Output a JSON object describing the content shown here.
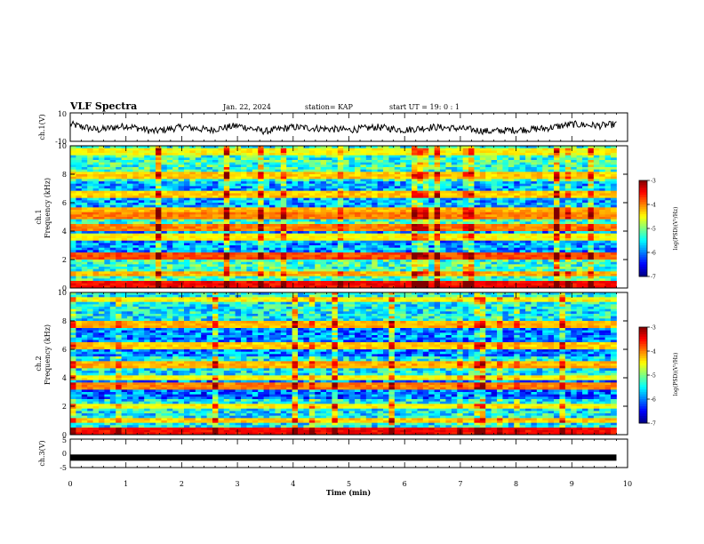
{
  "header": {
    "title": "VLF Spectra",
    "date": "Jan. 22, 2024",
    "station": "station= KAP",
    "start": "start  UT =   19: 0  : 1"
  },
  "panels": {
    "ch1_wave": {
      "ylabel": "ch.1(V)",
      "ytick_labels": [
        "10",
        "-10"
      ]
    },
    "ch1_spec": {
      "ylabel_line1": "ch.1",
      "ylabel_line2": "Frequency (kHz)",
      "ytick_labels": [
        "10",
        "8",
        "6",
        "4",
        "2",
        "0"
      ],
      "colorbar_label": "log(PSD)(V²/Hz)",
      "colorbar_ticks": [
        "-3",
        "-4",
        "-5",
        "-6",
        "-7"
      ]
    },
    "ch2_spec": {
      "ylabel_line1": "ch.2",
      "ylabel_line2": "Frequency (kHz)",
      "ytick_labels": [
        "10",
        "8",
        "6",
        "4",
        "2",
        "0"
      ],
      "colorbar_label": "log(PSD)(V²/Hz)",
      "colorbar_ticks": [
        "-3",
        "-4",
        "-5",
        "-6",
        "-7"
      ]
    },
    "ch3_wave": {
      "ylabel": "ch.3(V)",
      "ytick_labels": [
        "5",
        "0",
        "-5"
      ]
    },
    "xaxis": {
      "xlabel": "Time  (min)",
      "xtick_labels": [
        "0",
        "1",
        "2",
        "3",
        "4",
        "5",
        "6",
        "7",
        "8",
        "9",
        "10"
      ]
    }
  },
  "chart_data": [
    {
      "type": "line",
      "name": "ch.1 waveform",
      "xlabel": "Time (min)",
      "ylabel": "ch.1(V)",
      "xlim": [
        0,
        10
      ],
      "ylim": [
        -10,
        10
      ],
      "x": [
        0,
        0.5,
        1,
        1.5,
        2,
        2.5,
        3,
        3.5,
        4,
        4.5,
        5,
        5.5,
        6,
        6.5,
        7,
        7.5,
        8,
        8.5,
        9,
        9.5,
        9.8
      ],
      "values": [
        2,
        -2,
        1,
        -3,
        0,
        -2,
        1,
        -3,
        0,
        -1,
        -2,
        0,
        -2,
        0,
        -1,
        -3,
        -2,
        -1,
        2,
        1,
        2
      ]
    },
    {
      "type": "heatmap",
      "name": "ch.1 spectrogram",
      "xlabel": "Time (min)",
      "ylabel": "Frequency (kHz)",
      "xlim": [
        0,
        9.8
      ],
      "ylim": [
        0,
        10
      ],
      "colorbar": {
        "label": "log(PSD)(V²/Hz)",
        "range": [
          -7,
          -3
        ]
      },
      "bands_khz": [
        {
          "f": 0.3,
          "level": -3.5
        },
        {
          "f": 1.0,
          "level": -4.2
        },
        {
          "f": 2.3,
          "level": -3.8
        },
        {
          "f": 3.6,
          "level": -4.5
        },
        {
          "f": 4.2,
          "level": -4.0
        },
        {
          "f": 5.1,
          "level": -4.0
        },
        {
          "f": 5.4,
          "level": -4.2
        },
        {
          "f": 6.6,
          "level": -4.3
        },
        {
          "f": 7.9,
          "level": -4.3
        },
        {
          "f": 9.6,
          "level": -4.5
        }
      ],
      "background_level": -5.3
    },
    {
      "type": "heatmap",
      "name": "ch.2 spectrogram",
      "xlabel": "Time (min)",
      "ylabel": "Frequency (kHz)",
      "xlim": [
        0,
        9.8
      ],
      "ylim": [
        0,
        10
      ],
      "colorbar": {
        "label": "log(PSD)(V²/Hz)",
        "range": [
          -7,
          -3
        ]
      },
      "bands_khz": [
        {
          "f": 0.3,
          "level": -3.5
        },
        {
          "f": 1.0,
          "level": -4.3
        },
        {
          "f": 2.0,
          "level": -4.5
        },
        {
          "f": 3.4,
          "level": -4.0
        },
        {
          "f": 4.0,
          "level": -4.5
        },
        {
          "f": 4.9,
          "level": -4.2
        },
        {
          "f": 6.3,
          "level": -4.3
        },
        {
          "f": 7.8,
          "level": -4.2
        },
        {
          "f": 9.5,
          "level": -4.5
        }
      ],
      "background_level": -5.5
    },
    {
      "type": "line",
      "name": "ch.3 waveform",
      "xlabel": "Time (min)",
      "ylabel": "ch.3(V)",
      "xlim": [
        0,
        10
      ],
      "ylim": [
        -5,
        5
      ],
      "x": [
        0,
        9.8
      ],
      "values": [
        -1.5,
        -1.5
      ]
    }
  ]
}
